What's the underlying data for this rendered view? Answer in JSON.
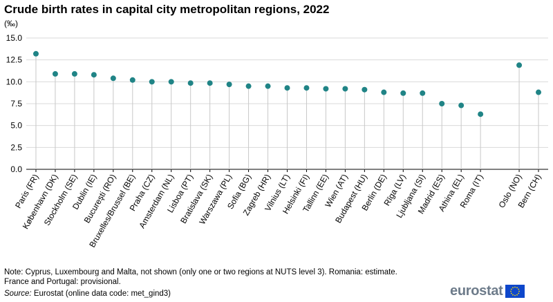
{
  "chart_data": {
    "type": "lollipop",
    "title": "Crude birth rates in capital city metropolitan regions, 2022",
    "unit_label": "(‰)",
    "ylim": [
      0,
      15
    ],
    "yticks": [
      "0.0",
      "2.5",
      "5.0",
      "7.5",
      "10.0",
      "12.5",
      "15.0"
    ],
    "grid": true,
    "series": [
      {
        "name": "Crude birth rate",
        "color": "#208486",
        "points": [
          {
            "label": "Paris (FR)",
            "value": 13.2
          },
          {
            "label": "København (DK)",
            "value": 10.9
          },
          {
            "label": "Stockholm (SE)",
            "value": 10.9
          },
          {
            "label": "Dublin (IE)",
            "value": 10.8
          },
          {
            "label": "Bucureşti (RO)",
            "value": 10.4
          },
          {
            "label": "Bruxelles/Brussel (BE)",
            "value": 10.2
          },
          {
            "label": "Praha (CZ)",
            "value": 10.0
          },
          {
            "label": "Amsterdam (NL)",
            "value": 10.0
          },
          {
            "label": "Lisboa (PT)",
            "value": 9.85
          },
          {
            "label": "Bratislava (SK)",
            "value": 9.85
          },
          {
            "label": "Warszawa (PL)",
            "value": 9.7
          },
          {
            "label": "Sofia (BG)",
            "value": 9.5
          },
          {
            "label": "Zagreb (HR)",
            "value": 9.5
          },
          {
            "label": "Vilnius (LT)",
            "value": 9.3
          },
          {
            "label": "Helsinki (FI)",
            "value": 9.3
          },
          {
            "label": "Tallinn (EE)",
            "value": 9.2
          },
          {
            "label": "Wien (AT)",
            "value": 9.2
          },
          {
            "label": "Budapest (HU)",
            "value": 9.1
          },
          {
            "label": "Berlin (DE)",
            "value": 8.8
          },
          {
            "label": "Rīga (LV)",
            "value": 8.7
          },
          {
            "label": "Ljubljana (SI)",
            "value": 8.7
          },
          {
            "label": "Madrid (ES)",
            "value": 7.5
          },
          {
            "label": "Athina (EL)",
            "value": 7.3
          },
          {
            "label": "Roma (IT)",
            "value": 6.3
          },
          {
            "label": "Oslo (NO)",
            "value": 11.9
          },
          {
            "label": "Bern (CH)",
            "value": 8.8
          }
        ]
      }
    ],
    "group_break_before": "Oslo (NO)"
  },
  "notes": {
    "line1": "Note: Cyprus, Luxembourg and Malta, not shown (only one or two regions at NUTS level 3). Romania: estimate.",
    "line2": "France and Portugal: provisional.",
    "source_label": "Source:",
    "source_text": " Eurostat (online data code: met_gind3)"
  },
  "logo": {
    "text": "eurostat"
  }
}
